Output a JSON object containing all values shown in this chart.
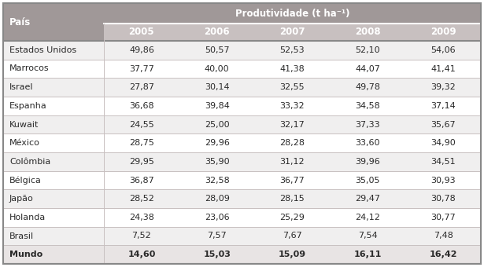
{
  "header_top": "Produtividade (t ha⁻¹)",
  "header_col": "País",
  "years": [
    "2005",
    "2006",
    "2007",
    "2008",
    "2009"
  ],
  "rows": [
    [
      "Estados Unidos",
      "49,86",
      "50,57",
      "52,53",
      "52,10",
      "54,06"
    ],
    [
      "Marrocos",
      "37,77",
      "40,00",
      "41,38",
      "44,07",
      "41,41"
    ],
    [
      "Israel",
      "27,87",
      "30,14",
      "32,55",
      "49,78",
      "39,32"
    ],
    [
      "Espanha",
      "36,68",
      "39,84",
      "33,32",
      "34,58",
      "37,14"
    ],
    [
      "Kuwait",
      "24,55",
      "25,00",
      "32,17",
      "37,33",
      "35,67"
    ],
    [
      "México",
      "28,75",
      "29,96",
      "28,28",
      "33,60",
      "34,90"
    ],
    [
      "Colômbia",
      "29,95",
      "35,90",
      "31,12",
      "39,96",
      "34,51"
    ],
    [
      "Bélgica",
      "36,87",
      "32,58",
      "36,77",
      "35,05",
      "30,93"
    ],
    [
      "Japão",
      "28,52",
      "28,09",
      "28,15",
      "29,47",
      "30,78"
    ],
    [
      "Holanda",
      "24,38",
      "23,06",
      "25,29",
      "24,12",
      "30,77"
    ],
    [
      "Brasil",
      "7,52",
      "7,57",
      "7,67",
      "7,54",
      "7,48"
    ]
  ],
  "last_row": [
    "Mundo",
    "14,60",
    "15,03",
    "15,09",
    "16,11",
    "16,42"
  ],
  "header_bg": "#a09898",
  "subheader_bg": "#c8c0c0",
  "row_bg_odd": "#f0efef",
  "row_bg_even": "#ffffff",
  "last_row_bg": "#e8e4e4",
  "text_color": "#2a2a2a",
  "header_text_color": "#ffffff",
  "line_color": "#c8c0c0",
  "font_size": 8.0,
  "header_font_size": 8.5
}
